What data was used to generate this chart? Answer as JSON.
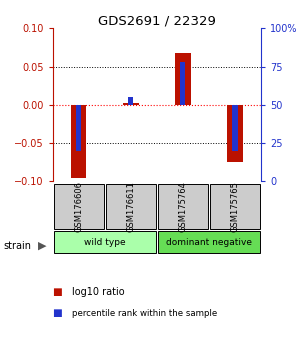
{
  "title": "GDS2691 / 22329",
  "samples": [
    "GSM176606",
    "GSM176611",
    "GSM175764",
    "GSM175765"
  ],
  "log10_ratio": [
    -0.095,
    0.003,
    0.068,
    -0.075
  ],
  "percentile_rank": [
    20,
    55,
    78,
    20
  ],
  "groups": [
    {
      "label": "wild type",
      "samples": [
        0,
        1
      ],
      "color": "#aaffaa"
    },
    {
      "label": "dominant negative",
      "samples": [
        2,
        3
      ],
      "color": "#66dd55"
    }
  ],
  "strain_label": "strain",
  "ylim": [
    -0.1,
    0.1
  ],
  "y2lim": [
    0,
    100
  ],
  "yticks": [
    -0.1,
    -0.05,
    0,
    0.05,
    0.1
  ],
  "y2ticks": [
    0,
    25,
    50,
    75,
    100
  ],
  "y2ticklabels": [
    "0",
    "25",
    "50",
    "75",
    "100%"
  ],
  "bar_color_red": "#bb1100",
  "bar_color_blue": "#2233cc",
  "background_color": "#ffffff",
  "plot_bg": "#ffffff",
  "bar_width": 0.3,
  "blue_bar_width": 0.1
}
